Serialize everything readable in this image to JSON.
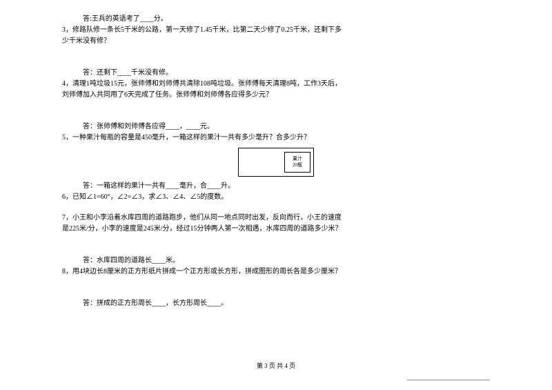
{
  "q2_ans": "答:王兵的英语考了____分。",
  "q3_l1": "3，修路队修一条长5千米的公路，第一天修了1.45千米，比第二天少修了0.25千米，还剩下多",
  "q3_l2": "少千米没有修？",
  "q3_ans": "答：还剩下____千米没有修。",
  "q4_l1": "4，清理1吨垃圾15元，张师傅和刘师傅共清除108吨垃圾。张师傅每天清理8吨，工作3天后，",
  "q4_l2": "刘师傅加入共同用了6天完成了任务。张师傅和刘师傅各应得多少元？",
  "q4_ans": "答：张师傅和刘师傅各应得____，____元。",
  "q5_l1": "5，一种果汁每瓶的容量是450毫升，一箱这样的果汁一共有多少毫升？合多少升？",
  "juice_label1": "果汁",
  "juice_label2": "20瓶",
  "q5_ans": "答：一箱这样的果汁一共有____毫升，合____升。",
  "q6_l1": "6，已知∠1=60°，∠2=∠3，求∠3、∠4、∠5的度数。",
  "q7_l1": "7，小王和小李沿着水库四周的道路跑步，他们从同一地点同时出发，反向而行，小王的速度",
  "q7_l2": "是225米/分，小李的速度是245米/分，经过15分钟两人第一次相遇，水库四周的道路多少米？",
  "q7_ans": "答：水库四周的道路长____米。",
  "q8_l1": "8，用4块边长8厘米的正方形纸片拼成一个正方形或长方形，拼成图形的周长各是多少厘米？",
  "q8_ans": "答：拼成的正方形周长____，长方形周长____。",
  "footer": "第 3 页  共 4 页"
}
